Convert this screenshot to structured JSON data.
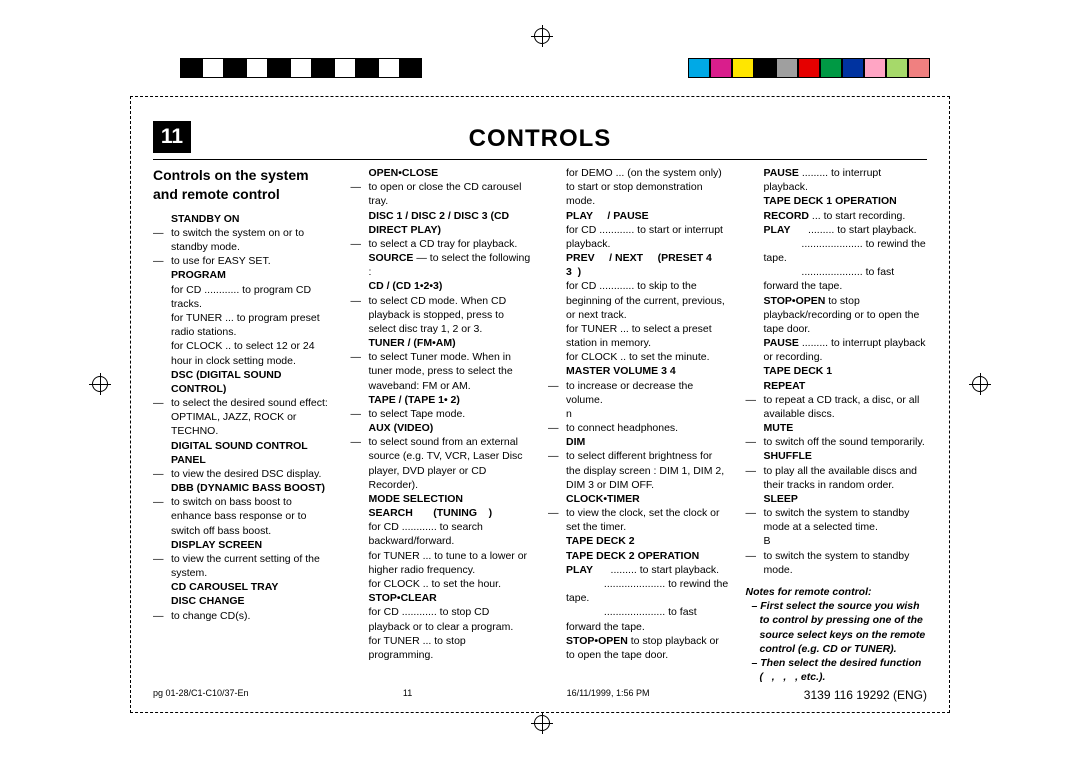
{
  "page_number": "11",
  "title": "CONTROLS",
  "subtitle": "Controls on the system and remote control",
  "colorbar_left": [
    "#000000",
    "#ffffff",
    "#000000",
    "#ffffff",
    "#000000",
    "#ffffff",
    "#000000",
    "#ffffff",
    "#000000",
    "#ffffff",
    "#000000"
  ],
  "colorbar_right": [
    "#00a9e6",
    "#d91e8c",
    "#ffe600",
    "#000000",
    "#9f9f9f",
    "#e50000",
    "#009944",
    "#0033a0",
    "#ffa5c4",
    "#a6d96a",
    "#f08080"
  ],
  "col1": [
    {
      "h": "STANDBY ON"
    },
    {
      "d": "to switch the system on or to standby mode."
    },
    {
      "d": "to use for EASY SET."
    },
    {
      "h": "PROGRAM"
    },
    {
      "t": "for CD ............ to program CD tracks."
    },
    {
      "t": "for TUNER ... to program preset radio stations."
    },
    {
      "t": "for CLOCK .. to select 12 or 24 hour in clock setting mode."
    },
    {
      "h": "DSC (DIGITAL SOUND CONTROL)"
    },
    {
      "d": "to select the desired sound effect: OPTIMAL, JAZZ, ROCK or TECHNO."
    },
    {
      "h": "DIGITAL SOUND CONTROL PANEL"
    },
    {
      "d": "to view the desired DSC display."
    },
    {
      "h": "DBB (DYNAMIC BASS BOOST)"
    },
    {
      "d": "to switch on bass boost to enhance bass response or to switch off bass boost."
    },
    {
      "h": "DISPLAY SCREEN"
    },
    {
      "d": "to view the current setting of the system."
    },
    {
      "h": "CD CAROUSEL TRAY"
    },
    {
      "h": "DISC CHANGE"
    },
    {
      "d": "to change CD(s)."
    }
  ],
  "col2": [
    {
      "h": "OPEN•CLOSE"
    },
    {
      "d": "to open or close the CD carousel tray."
    },
    {
      "h": "DISC 1 / DISC 2 / DISC 3 (CD DIRECT PLAY)"
    },
    {
      "d": "to select a CD tray for playback."
    },
    {
      "t": "<b>SOURCE</b> — to select the following :"
    },
    {
      "h": "CD / (CD 1•2•3)"
    },
    {
      "d": "to select CD mode. When CD playback is stopped, press to select disc tray 1, 2 or 3."
    },
    {
      "h": "TUNER / (FM•AM)"
    },
    {
      "d": "to select Tuner mode. When in tuner mode, press to select the waveband: FM or AM."
    },
    {
      "h": "TAPE / (TAPE 1• 2)"
    },
    {
      "d": "to select Tape mode."
    },
    {
      "h": "AUX (VIDEO)"
    },
    {
      "d": "to select sound from an external source (e.g. TV, VCR, Laser Disc player, DVD player or CD Recorder)."
    },
    {
      "h": "MODE SELECTION"
    },
    {
      "h": "SEARCH &nbsp;&nbsp;&nbsp;&nbsp;&nbsp;&nbsp;(TUNING&nbsp;&nbsp;&nbsp;&nbsp;)"
    },
    {
      "t": "for CD ............ to search backward/forward."
    },
    {
      "t": "for TUNER ... to tune to a lower or higher radio frequency."
    },
    {
      "t": "for CLOCK .. to set the hour."
    },
    {
      "h": "STOP•CLEAR"
    },
    {
      "t": "for CD ............ to stop CD playback or to clear a program."
    },
    {
      "t": "for TUNER ... to stop programming."
    }
  ],
  "col3": [
    {
      "t": "for DEMO ... (on the system only) to start or stop demonstration mode."
    },
    {
      "h": "PLAY &nbsp;&nbsp;&nbsp; / PAUSE"
    },
    {
      "t": "for CD ............ to start or interrupt playback."
    },
    {
      "h": "PREV &nbsp;&nbsp;&nbsp; / NEXT &nbsp;&nbsp;&nbsp; (PRESET 4 3&nbsp;&nbsp;)"
    },
    {
      "t": "for CD ............ to skip to the beginning of the current, previous, or next track."
    },
    {
      "t": "for TUNER ... to select a preset station in memory."
    },
    {
      "t": "for CLOCK .. to set the minute."
    },
    {
      "h": "MASTER VOLUME 3 4"
    },
    {
      "d": "to increase or decrease the volume."
    },
    {
      "t": "n"
    },
    {
      "d": "to connect headphones."
    },
    {
      "h": "DIM"
    },
    {
      "d": "to select different brightness for the display screen : DIM 1, DIM 2, DIM 3 or DIM OFF."
    },
    {
      "h": "CLOCK•TIMER"
    },
    {
      "d": "to view the clock, set the clock or set the timer."
    },
    {
      "h": "TAPE DECK 2"
    },
    {
      "h": "TAPE DECK 2 OPERATION"
    },
    {
      "t": "<b>PLAY</b> &nbsp;&nbsp;&nbsp;&nbsp;&nbsp;......... to start playback."
    },
    {
      "t": "&nbsp;&nbsp;&nbsp;&nbsp;&nbsp;&nbsp;&nbsp;&nbsp;&nbsp;&nbsp;&nbsp;&nbsp;&nbsp;..................... to rewind the tape."
    },
    {
      "t": "&nbsp;&nbsp;&nbsp;&nbsp;&nbsp;&nbsp;&nbsp;&nbsp;&nbsp;&nbsp;&nbsp;&nbsp;&nbsp;..................... to fast forward the tape."
    },
    {
      "t": "<b>STOP•OPEN</b> to stop playback or to open the tape door."
    }
  ],
  "col4": [
    {
      "t": "<b>PAUSE</b> ......... to interrupt playback."
    },
    {
      "h": "TAPE DECK 1 OPERATION"
    },
    {
      "t": "<b>RECORD</b> ... to start recording."
    },
    {
      "t": "<b>PLAY</b> &nbsp;&nbsp;&nbsp;&nbsp;&nbsp;......... to start playback."
    },
    {
      "t": "&nbsp;&nbsp;&nbsp;&nbsp;&nbsp;&nbsp;&nbsp;&nbsp;&nbsp;&nbsp;&nbsp;&nbsp;&nbsp;..................... to rewind the tape."
    },
    {
      "t": "&nbsp;&nbsp;&nbsp;&nbsp;&nbsp;&nbsp;&nbsp;&nbsp;&nbsp;&nbsp;&nbsp;&nbsp;&nbsp;..................... to fast forward the tape."
    },
    {
      "t": "<b>STOP•OPEN</b> to stop playback/recording or to open the tape door."
    },
    {
      "t": "<b>PAUSE</b> ......... to interrupt playback or recording."
    },
    {
      "h": "TAPE DECK 1"
    },
    {
      "h": "REPEAT"
    },
    {
      "d": "to repeat a CD track, a disc, or all available discs."
    },
    {
      "h": "MUTE"
    },
    {
      "d": "to switch off the sound temporarily."
    },
    {
      "h": "SHUFFLE"
    },
    {
      "d": "to play all the available discs and their tracks in random order."
    },
    {
      "h": "SLEEP"
    },
    {
      "d": "to switch the system to standby mode at a selected time."
    },
    {
      "t": "B"
    },
    {
      "d": "to switch the system to standby mode."
    }
  ],
  "notes_title": "Notes for remote control:",
  "note1": "– First select the source you wish to control by pressing one of the source select keys on the remote control (e.g. CD or TUNER).",
  "note2": "– Then select the desired function ( &nbsp;&nbsp;, &nbsp;&nbsp;, &nbsp;&nbsp;, etc.).",
  "footer_left": "pg 01-28/C1-C10/37-En",
  "footer_pagenum": "11",
  "footer_date": "16/11/1999, 1:56 PM",
  "footer_doc": "3139 116 19292 (ENG)"
}
